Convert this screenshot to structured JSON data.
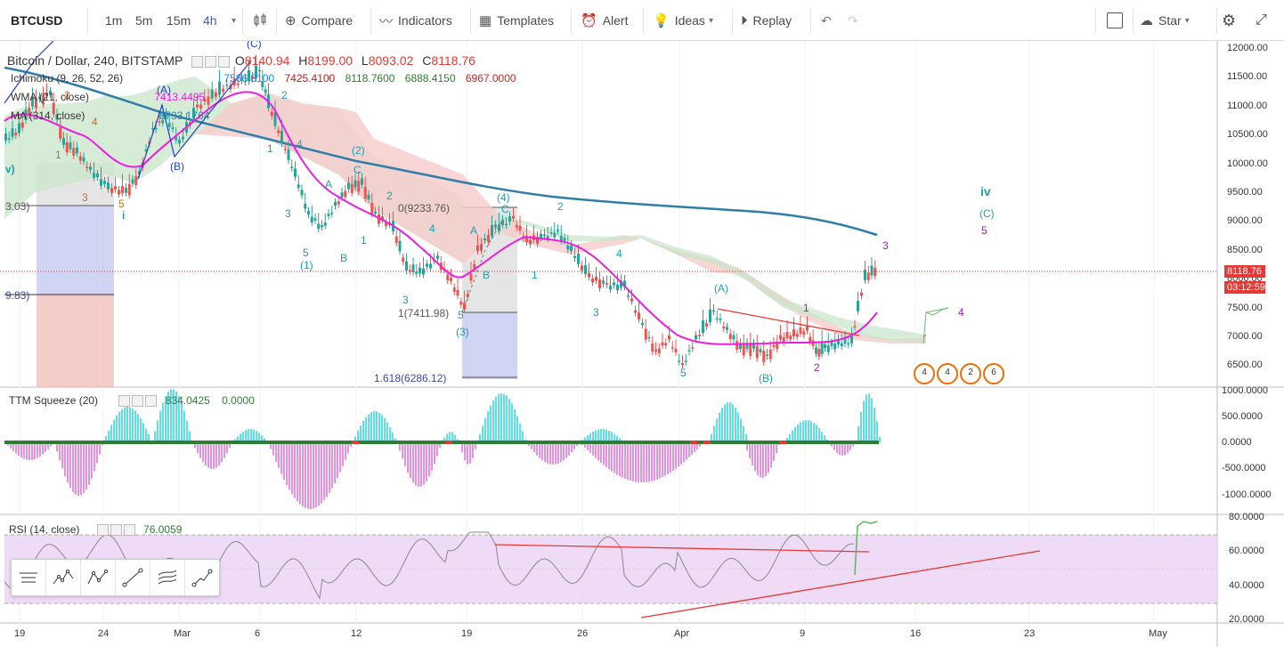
{
  "toolbar": {
    "symbol": "BTCUSD",
    "intervals": [
      "1m",
      "5m",
      "15m",
      "4h"
    ],
    "compare": "Compare",
    "indicators": "Indicators",
    "templates": "Templates",
    "alert": "Alert",
    "ideas": "Ideas",
    "replay": "Replay",
    "star": "Star"
  },
  "main_legend": {
    "title": "Bitcoin / Dollar, 240, BITSTAMP",
    "o_label": "O",
    "o": "8140.94",
    "h_label": "H",
    "h": "8199.00",
    "l_label": "L",
    "l": "8093.02",
    "c_label": "C",
    "c": "8118.76",
    "ichimoku": "Ichimoku (9, 26, 52, 26)",
    "ichimoku_values": [
      "7586.8100",
      "7425.4100",
      "8118.7600",
      "6888.4150",
      "6967.0000"
    ],
    "wma": "WMA (21, close)",
    "wma_value": "7413.4495",
    "ma": "MA (314, close)",
    "ma_value": "8733.1764"
  },
  "price_axis": [
    "12000.00",
    "11500.00",
    "11000.00",
    "10500.00",
    "10000.00",
    "9500.00",
    "9000.00",
    "8500.00",
    "8000.00",
    "7500.00",
    "7000.00",
    "6500.00"
  ],
  "last_price": "8118.76",
  "countdown": "03:12:59",
  "fib_labels": [
    "0(9233.76)",
    "1(7411.98)",
    "1.618(6286.12)",
    "3.03)",
    "9.83)"
  ],
  "wave_labels": {
    "teal": [
      "(C)",
      "(A)",
      "(B)",
      "2",
      "1",
      "3",
      "4",
      "5",
      "(1)",
      "A",
      "B",
      "C",
      "(2)",
      "1",
      "2",
      "3",
      "4",
      "5",
      "(3)",
      "(4)",
      "A",
      "B",
      "C",
      "2",
      "1",
      "4",
      "3",
      "5",
      "(A)",
      "(B)",
      "i",
      "v)",
      "iv",
      "(C)",
      "5",
      "4",
      "3",
      "2",
      "1"
    ],
    "purple": [
      "1",
      "2",
      "3",
      "4",
      "5"
    ]
  },
  "ttm": {
    "title": "TTM Squeeze (20)",
    "value1": "834.0425",
    "value2": "0.0000",
    "axis": [
      "1000.0000",
      "500.0000",
      "0.0000",
      "-500.0000",
      "-1000.0000"
    ]
  },
  "rsi": {
    "title": "RSI (14, close)",
    "value": "76.0059",
    "axis": [
      "80.0000",
      "60.0000",
      "40.0000",
      "20.0000"
    ]
  },
  "time_axis": [
    "19",
    "24",
    "Mar",
    "6",
    "12",
    "19",
    "26",
    "Apr",
    "9",
    "16",
    "23",
    "May"
  ],
  "events": [
    "4",
    "4",
    "2",
    "6"
  ],
  "colors": {
    "bull": "#26a69a",
    "bear": "#ef5350",
    "wma": "#e91ee0",
    "ma": "#2f7ea8",
    "cloud_green": "#c8e6c9",
    "cloud_red": "#f8cccc",
    "rsi_band": "#ecd5f5",
    "ttm_pos": "#5ce1e6",
    "ttm_neg": "#e88fe8"
  },
  "drawing_tools": [
    "horizontal-lines-icon",
    "elliott-impulse-icon",
    "elliott-correction-icon",
    "trend-line-icon",
    "fib-channel-icon",
    "path-icon"
  ]
}
